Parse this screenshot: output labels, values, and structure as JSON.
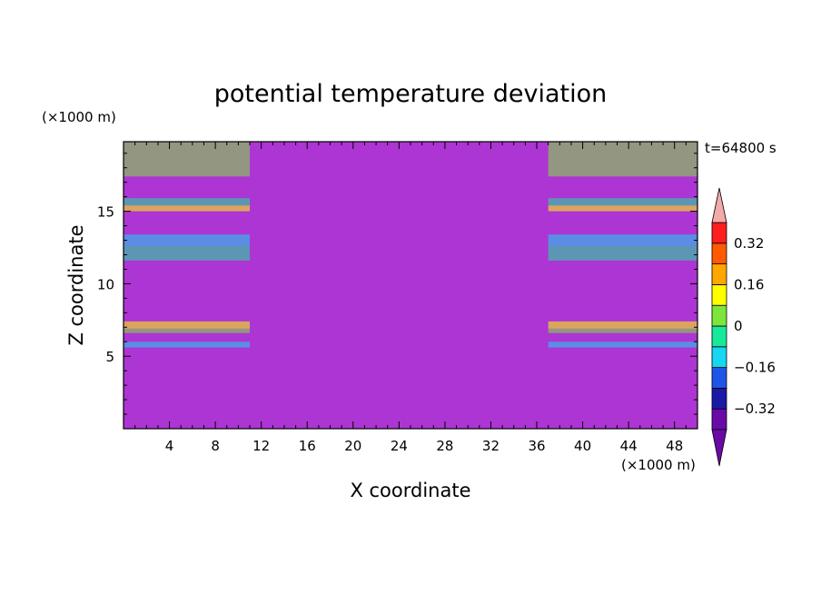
{
  "chart_data": {
    "type": "heatmap",
    "title": "potential temperature deviation",
    "xlabel": "X coordinate",
    "ylabel": "Z coordinate",
    "x_unit": "(×1000 m)",
    "y_unit": "(×1000 m)",
    "time_label": "t=64800 s",
    "xlim": [
      0,
      50
    ],
    "ylim": [
      0,
      19.8
    ],
    "x_ticks": [
      4,
      8,
      12,
      16,
      20,
      24,
      28,
      32,
      36,
      40,
      44,
      48
    ],
    "y_ticks": [
      5,
      10,
      15
    ],
    "levels": [
      -0.4,
      -0.32,
      -0.24,
      -0.16,
      -0.08,
      0,
      0.08,
      0.16,
      0.24,
      0.32,
      0.4
    ],
    "colorbar_labels": [
      "0.32",
      "0.16",
      "0",
      "−0.16",
      "−0.32"
    ],
    "colors": [
      "#6a0aa6",
      "#1a1aa6",
      "#1f55e6",
      "#17d6f2",
      "#18e89a",
      "#7de63c",
      "#ffff00",
      "#ffa600",
      "#ff5a00",
      "#ff1e1e",
      "#f3aaaa"
    ],
    "grid": false
  }
}
